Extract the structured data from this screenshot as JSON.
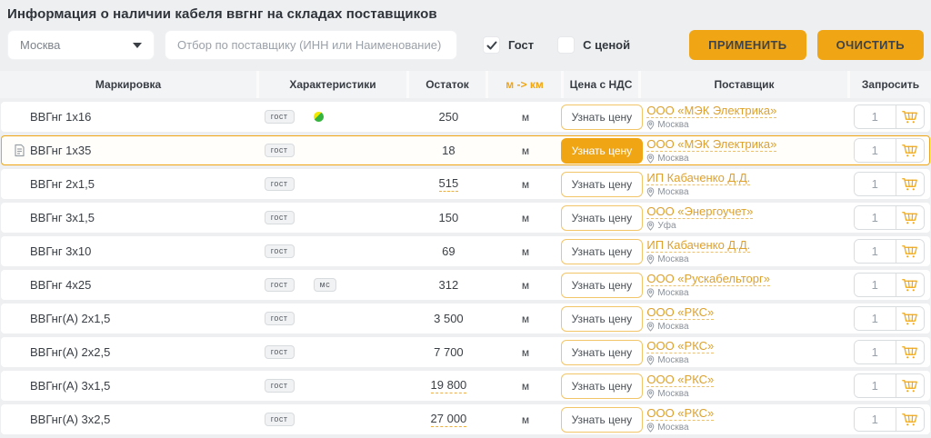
{
  "colors": {
    "accent": "#F0A614",
    "accent_border": "#F2C569",
    "link_orange": "#DCA12F",
    "text_dark": "#383D44",
    "text_gray": "#8B919A",
    "page_bg": "#EDEFF1"
  },
  "page": {
    "title": "Информация о наличии кабеля ввгнг на складах поставщиков"
  },
  "filters": {
    "region_select": {
      "value": "Москва"
    },
    "supplier_input": {
      "placeholder": "Отбор по поставщику (ИНН или Наименование)"
    },
    "checkboxes": [
      {
        "label": "Гост",
        "checked": true
      },
      {
        "label": "С ценой",
        "checked": false
      }
    ],
    "apply_label": "ПРИМЕНИТЬ",
    "clear_label": "ОЧИСТИТЬ"
  },
  "table": {
    "headers": [
      "Маркировка",
      "Характеристики",
      "Остаток",
      "м -> км",
      "Цена с НДС",
      "Поставщик",
      "Запросить"
    ],
    "price_button_label": "Узнать цену",
    "rows": [
      {
        "marking": "ВВГнг 1х16",
        "badges": [
          "гост"
        ],
        "availability_icon": true,
        "doc_icon": false,
        "stock": "250",
        "stock_link": false,
        "unit": "м",
        "price_filled": false,
        "supplier": "ООО «МЭК Электрика»",
        "city": "Москва",
        "qty": "1",
        "highlighted": false
      },
      {
        "marking": "ВВГнг 1х35",
        "badges": [
          "гост"
        ],
        "availability_icon": false,
        "doc_icon": true,
        "stock": "18",
        "stock_link": false,
        "unit": "м",
        "price_filled": true,
        "supplier": "ООО «МЭК Электрика»",
        "city": "Москва",
        "qty": "1",
        "highlighted": true
      },
      {
        "marking": "ВВГнг 2х1,5",
        "badges": [
          "гост"
        ],
        "availability_icon": false,
        "doc_icon": false,
        "stock": "515",
        "stock_link": true,
        "unit": "м",
        "price_filled": false,
        "supplier": "ИП Кабаченко Д.Д.",
        "city": "Москва",
        "qty": "1",
        "highlighted": false
      },
      {
        "marking": "ВВГнг 3х1,5",
        "badges": [
          "гост"
        ],
        "availability_icon": false,
        "doc_icon": false,
        "stock": "150",
        "stock_link": false,
        "unit": "м",
        "price_filled": false,
        "supplier": "ООО «Энергоучет»",
        "city": "Уфа",
        "qty": "1",
        "highlighted": false
      },
      {
        "marking": "ВВГнг 3х10",
        "badges": [
          "гост"
        ],
        "availability_icon": false,
        "doc_icon": false,
        "stock": "69",
        "stock_link": false,
        "unit": "м",
        "price_filled": false,
        "supplier": "ИП Кабаченко Д.Д.",
        "city": "Москва",
        "qty": "1",
        "highlighted": false
      },
      {
        "marking": "ВВГнг 4х25",
        "badges": [
          "гост",
          "мс"
        ],
        "availability_icon": false,
        "doc_icon": false,
        "stock": "312",
        "stock_link": false,
        "unit": "м",
        "price_filled": false,
        "supplier": "ООО «Рускабельторг»",
        "city": "Москва",
        "qty": "1",
        "highlighted": false
      },
      {
        "marking": "ВВГнг(А) 2х1,5",
        "badges": [
          "гост"
        ],
        "availability_icon": false,
        "doc_icon": false,
        "stock": "3 500",
        "stock_link": false,
        "unit": "м",
        "price_filled": false,
        "supplier": "ООО «РКС»",
        "city": "Москва",
        "qty": "1",
        "highlighted": false
      },
      {
        "marking": "ВВГнг(А) 2х2,5",
        "badges": [
          "гост"
        ],
        "availability_icon": false,
        "doc_icon": false,
        "stock": "7 700",
        "stock_link": false,
        "unit": "м",
        "price_filled": false,
        "supplier": "ООО «РКС»",
        "city": "Москва",
        "qty": "1",
        "highlighted": false
      },
      {
        "marking": "ВВГнг(А) 3х1,5",
        "badges": [
          "гост"
        ],
        "availability_icon": false,
        "doc_icon": false,
        "stock": "19 800",
        "stock_link": true,
        "unit": "м",
        "price_filled": false,
        "supplier": "ООО «РКС»",
        "city": "Москва",
        "qty": "1",
        "highlighted": false
      },
      {
        "marking": "ВВГнг(А) 3х2,5",
        "badges": [
          "гост"
        ],
        "availability_icon": false,
        "doc_icon": false,
        "stock": "27 000",
        "stock_link": true,
        "unit": "м",
        "price_filled": false,
        "supplier": "ООО «РКС»",
        "city": "Москва",
        "qty": "1",
        "highlighted": false
      }
    ]
  }
}
